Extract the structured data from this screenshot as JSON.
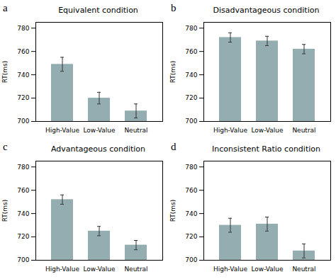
{
  "chart_data": [
    {
      "type": "bar",
      "title": "Equivalent condition",
      "annotation": "a",
      "categories": [
        "High-Value",
        "Low-Value",
        "Neutral"
      ],
      "values": [
        749,
        720,
        709
      ],
      "errors": [
        6,
        5,
        6
      ],
      "color": "#93adb0",
      "ylabel": "RT(ms)",
      "ylim": [
        700,
        785
      ],
      "yticks": [
        700,
        720,
        740,
        760,
        780
      ],
      "grid": false
    },
    {
      "type": "bar",
      "title": "Disadvantageous condition",
      "annotation": "b",
      "categories": [
        "High-Value",
        "Low-Value",
        "Neutral"
      ],
      "values": [
        772,
        769,
        762
      ],
      "errors": [
        4,
        4,
        4
      ],
      "color": "#93adb0",
      "ylabel": "RT(ms)",
      "ylim": [
        700,
        785
      ],
      "yticks": [
        700,
        720,
        740,
        760,
        780
      ],
      "grid": false
    },
    {
      "type": "bar",
      "title": "Advantageous condition",
      "annotation": "c",
      "categories": [
        "High-Value",
        "Low-Value",
        "Neutral"
      ],
      "values": [
        752,
        725,
        713
      ],
      "errors": [
        4,
        4,
        4
      ],
      "color": "#93adb0",
      "ylabel": "RT(ms)",
      "ylim": [
        700,
        785
      ],
      "yticks": [
        700,
        720,
        740,
        760,
        780
      ],
      "grid": false
    },
    {
      "type": "bar",
      "title": "Inconsistent Ratio condition",
      "annotation": "d",
      "categories": [
        "High-Value",
        "Low-Value",
        "Neutral"
      ],
      "values": [
        730,
        731,
        708
      ],
      "errors": [
        6,
        6,
        6
      ],
      "color": "#93adb0",
      "ylabel": "RT(ms)",
      "ylim": [
        700,
        785
      ],
      "yticks": [
        700,
        720,
        740,
        760,
        780
      ],
      "grid": false
    }
  ]
}
